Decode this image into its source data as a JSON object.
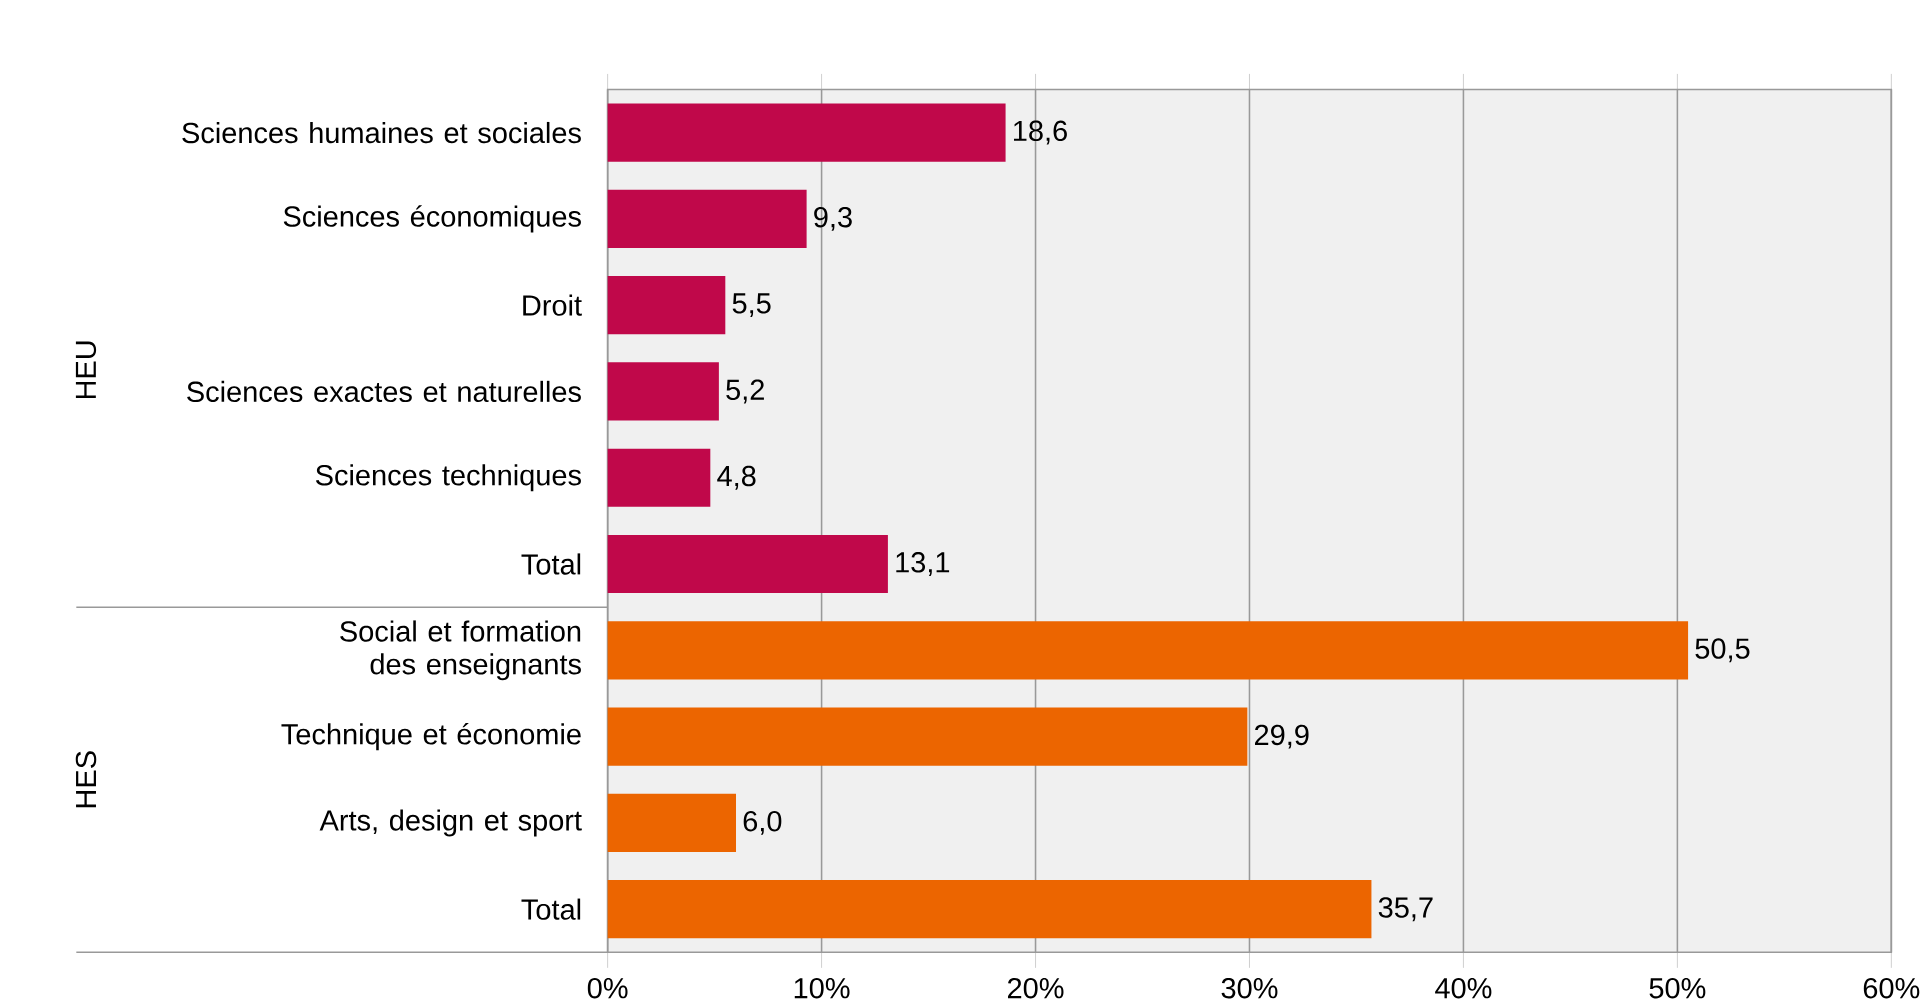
{
  "chart_data": {
    "type": "bar",
    "orientation": "horizontal",
    "categories": [
      "Sciences humaines et sociales",
      "Sciences économiques",
      "Droit",
      "Sciences exactes et naturelles",
      "Sciences techniques",
      "Total",
      "Social et formation des enseignants",
      "Technique et économie",
      "Arts, design et sport",
      "Total"
    ],
    "values": [
      18.6,
      9.3,
      5.5,
      5.2,
      4.8,
      13.1,
      50.5,
      29.9,
      6.0,
      35.7
    ],
    "value_labels": [
      "18,6",
      "9,3",
      "5,5",
      "5,2",
      "4,8",
      "13,1",
      "50,5",
      "29,9",
      "6,0",
      "35,7"
    ],
    "colors": [
      "#c0084a",
      "#c0084a",
      "#c0084a",
      "#c0084a",
      "#c0084a",
      "#c0084a",
      "#ec6500",
      "#ec6500",
      "#ec6500",
      "#ec6500"
    ],
    "xlim": [
      0,
      60
    ],
    "xticks": [
      {
        "value": 0,
        "label": "0%"
      },
      {
        "value": 10,
        "label": "10%"
      },
      {
        "value": 20,
        "label": "20%"
      },
      {
        "value": 30,
        "label": "30%"
      },
      {
        "value": 40,
        "label": "40%"
      },
      {
        "value": 50,
        "label": "50%"
      },
      {
        "value": 60,
        "label": "60%"
      }
    ],
    "grid": "x",
    "annotations": [
      "HEU",
      "HES"
    ]
  }
}
